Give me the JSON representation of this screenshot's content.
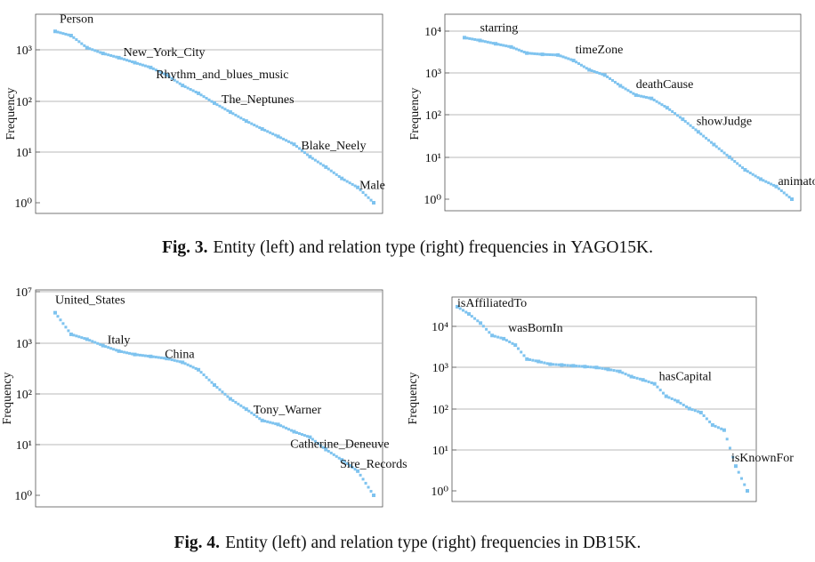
{
  "figures": [
    {
      "label": "Fig. 3.",
      "caption_main": "Entity (left) and relation type (right) frequencies in ",
      "caption_dataset": "YAGO15K",
      "caption_end": "."
    },
    {
      "label": "Fig. 4.",
      "caption_main": "Entity (left) and relation type (right) frequencies in ",
      "caption_dataset": "DB15K",
      "caption_end": "."
    }
  ],
  "chart_data": [
    {
      "type": "scatter",
      "title": "",
      "ylabel": "Frequency",
      "xlabel": "",
      "yscale": "log",
      "ylim": [
        0.8,
        4000
      ],
      "yticks": [
        "10^0",
        "10^1",
        "10^2",
        "10^3"
      ],
      "grid": "horizontal",
      "color": "#7ec3ef",
      "series": [
        {
          "values": [
            2300,
            1900,
            1100,
            850,
            700,
            560,
            450,
            320,
            200,
            140,
            90,
            60,
            40,
            28,
            20,
            14,
            8,
            5,
            3,
            2,
            1
          ]
        }
      ],
      "annotations": [
        {
          "text": "Person",
          "y": 2300
        },
        {
          "text": "New_York_City",
          "y": 700
        },
        {
          "text": "Rhythm_and_blues_music",
          "y": 200
        },
        {
          "text": "The_Neptunes",
          "y": 60
        },
        {
          "text": "Blake_Neely",
          "y": 8
        },
        {
          "text": "Male",
          "y": 2
        }
      ]
    },
    {
      "type": "scatter",
      "title": "",
      "ylabel": "Frequency",
      "xlabel": "",
      "yscale": "log",
      "ylim": [
        0.8,
        16000
      ],
      "yticks": [
        "10^0",
        "10^1",
        "10^2",
        "10^3",
        "10^4"
      ],
      "grid": "horizontal",
      "color": "#7ec3ef",
      "series": [
        {
          "values": [
            7000,
            6000,
            5000,
            4200,
            3000,
            2800,
            2700,
            2000,
            1200,
            900,
            500,
            300,
            250,
            150,
            80,
            40,
            20,
            10,
            5,
            3,
            2,
            1
          ]
        }
      ],
      "annotations": [
        {
          "text": "starring",
          "y": 6000
        },
        {
          "text": "timeZone",
          "y": 2000
        },
        {
          "text": "deathCause",
          "y": 300
        },
        {
          "text": "showJudge",
          "y": 40
        },
        {
          "text": "animator",
          "y": 2
        }
      ]
    },
    {
      "type": "scatter",
      "title": "",
      "ylabel": "Frequency",
      "xlabel": "",
      "yscale": "log",
      "ylim": [
        0.8,
        10000000
      ],
      "yticks": [
        "10^0",
        "10^1",
        "10^2",
        "10^3",
        "10^7"
      ],
      "grid": "horizontal",
      "color": "#7ec3ef",
      "series": [
        {
          "values": [
            4000,
            1500,
            1200,
            900,
            700,
            600,
            550,
            500,
            420,
            300,
            150,
            80,
            50,
            30,
            25,
            18,
            14,
            8,
            5,
            3,
            1
          ]
        }
      ],
      "annotations": [
        {
          "text": "United_States",
          "y": 4000
        },
        {
          "text": "Italy",
          "y": 900
        },
        {
          "text": "China",
          "y": 420
        },
        {
          "text": "Tony_Warner",
          "y": 30
        },
        {
          "text": "Catherine_Deneuve",
          "y": 8
        },
        {
          "text": "Sire_Records",
          "y": 3
        }
      ]
    },
    {
      "type": "scatter",
      "title": "",
      "ylabel": "Frequency",
      "xlabel": "",
      "yscale": "log",
      "ylim": [
        0.8,
        40000
      ],
      "yticks": [
        "10^0",
        "10^1",
        "10^2",
        "10^3",
        "10^4"
      ],
      "grid": "horizontal",
      "color": "#7ec3ef",
      "series": [
        {
          "values": [
            30000,
            20000,
            12000,
            6000,
            5000,
            3500,
            1600,
            1400,
            1200,
            1150,
            1100,
            1050,
            1000,
            900,
            800,
            600,
            500,
            400,
            200,
            150,
            100,
            80,
            40,
            30,
            4,
            1
          ]
        }
      ],
      "annotations": [
        {
          "text": "isAffiliatedTo",
          "y": 30000
        },
        {
          "text": "wasBornIn",
          "y": 5000
        },
        {
          "text": "hasCapital",
          "y": 400
        },
        {
          "text": "isKnownFor",
          "y": 4
        }
      ]
    }
  ]
}
